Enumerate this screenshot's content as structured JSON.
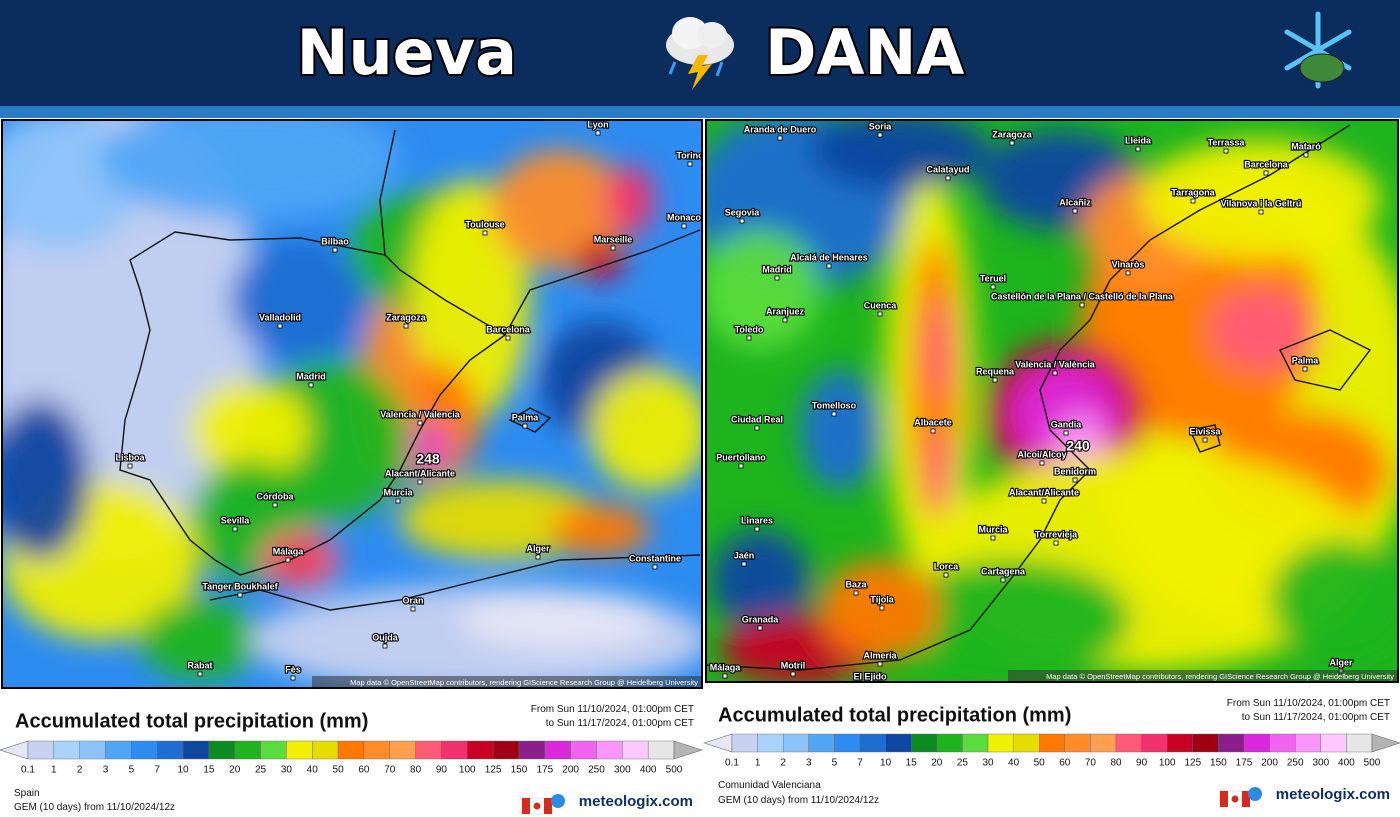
{
  "header": {
    "title_left": "Nueva",
    "title_right": "DANA"
  },
  "scale": {
    "levels": [
      0.1,
      1,
      2,
      3,
      5,
      7,
      10,
      15,
      20,
      25,
      30,
      40,
      50,
      60,
      70,
      80,
      90,
      100,
      125,
      150,
      175,
      200,
      250,
      300,
      400,
      500
    ],
    "colors": [
      "#e6e6f5",
      "#c8d2f0",
      "#aad2fa",
      "#8cc3fa",
      "#50a5f5",
      "#2d8cf0",
      "#1e6ed2",
      "#0f46a0",
      "#0a8c1e",
      "#1eb41e",
      "#5adc3c",
      "#f0f000",
      "#e6dc00",
      "#ff7800",
      "#ff8c28",
      "#ffa050",
      "#ff5a78",
      "#f0326e",
      "#c80023",
      "#a00014",
      "#8c1e8c",
      "#dc28dc",
      "#f064f0",
      "#fa96fa",
      "#ffc8ff",
      "#e6e6e6",
      "#b4b4b4"
    ]
  },
  "panels": [
    {
      "region": "Spain",
      "legend_title": "Accumulated total precipitation (mm)",
      "date_from": "From Sun 11/10/2024, 01:00pm CET",
      "date_to": "to Sun 11/17/2024, 01:00pm CET",
      "model": "GEM (10 days) from 11/10/2024/12z",
      "brand": "meteologix.com",
      "attribution": "Map data © OpenStreetMap contributors, rendering GIScience Research Group @ Heidelberg University",
      "peak": "248",
      "cities": [
        "Lyon",
        "Torino",
        "Monaco",
        "Toulouse",
        "Marseille",
        "Bilbao",
        "Valladolid",
        "Zaragoza",
        "Barcelona",
        "Madrid",
        "Lisboa",
        "Valencia / Valencia",
        "Palma",
        "Alacant/Alicante",
        "Murcia",
        "Córdoba",
        "Sevilla",
        "Málaga",
        "Alger",
        "Constantine",
        "Tanger Boukhalef",
        "Oran",
        "Oujda",
        "Rabat",
        "Fès"
      ]
    },
    {
      "region": "Comunidad Valenciana",
      "legend_title": "Accumulated total precipitation (mm)",
      "date_from": "From Sun 11/10/2024, 01:00pm CET",
      "date_to": "to Sun 11/17/2024, 01:00pm CET",
      "model": "GEM (10 days) from 11/10/2024/12z",
      "brand": "meteologix.com",
      "attribution": "Map data © OpenStreetMap contributors, rendering GIScience Research Group @ Heidelberg University",
      "peak": "240",
      "cities": [
        "Aranda de Duero",
        "Soria",
        "Zaragoza",
        "Lleida",
        "Terrassa",
        "Mataró",
        "Barcelona",
        "Calatayud",
        "Segovia",
        "Alcañiz",
        "Tarragona",
        "Vilanova i la Geltrú",
        "Alcalá de Henares",
        "Madrid",
        "Teruel",
        "Vinaròs",
        "Castellón de la Plana / Castelló de la Plana",
        "Aranjuez",
        "Toledo",
        "Cuenca",
        "Requena",
        "Valencia / València",
        "Palma",
        "Tomelloso",
        "Ciudad Real",
        "Albacete",
        "Gandia",
        "Eivissa",
        "Puertollano",
        "Alcoi/Alcoy",
        "Benidorm",
        "Alacant/Alicante",
        "Linares",
        "Murcia",
        "Torrevieja",
        "Jaén",
        "Lorca",
        "Cartagena",
        "Baza",
        "Tíjola",
        "Granada",
        "Almería",
        "Motril",
        "El Ejido",
        "Alger",
        "Málaga"
      ]
    }
  ]
}
